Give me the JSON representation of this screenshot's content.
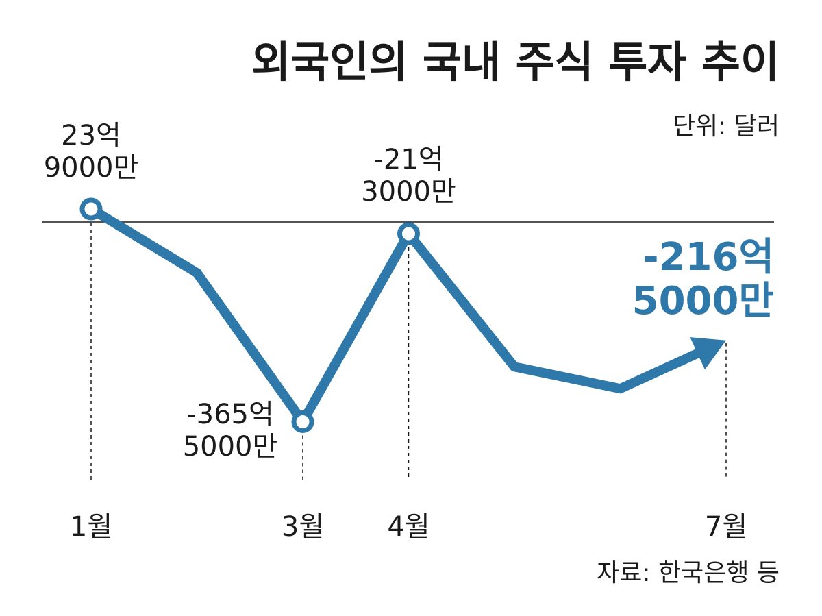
{
  "title": "외국인의 국내 주식 투자 추이",
  "unit": "단위: 달러",
  "source": "자료: 한국은행 등",
  "colors": {
    "line": "#2f78aa",
    "accent": "#2f78aa",
    "text": "#1a1a1a",
    "baseline": "#1a1a1a"
  },
  "chart_data": {
    "type": "line",
    "title": "외국인의 국내 주식 투자 추이",
    "unit": "단위: 달러",
    "x": [
      1,
      2,
      3,
      4,
      5,
      6,
      7
    ],
    "xlabel": "",
    "ylabel": "",
    "x_ticks": [
      {
        "x": 1,
        "label": "1월"
      },
      {
        "x": 3,
        "label": "3월"
      },
      {
        "x": 4,
        "label": "4월"
      },
      {
        "x": 7,
        "label": "7월"
      }
    ],
    "series": [
      {
        "values": [
          23.9,
          -93.0,
          -365.5,
          -21.3,
          -265.0,
          -305.0,
          -216.5
        ]
      }
    ],
    "ylim": [
      -420,
      40
    ],
    "baseline": 0,
    "grid": false,
    "legend": "none",
    "data_labels": [
      {
        "x": 1,
        "lines": [
          "23억",
          "9000만"
        ],
        "highlight": false
      },
      {
        "x": 3,
        "lines": [
          "-365억",
          "5000만"
        ],
        "highlight": false
      },
      {
        "x": 4,
        "lines": [
          "-21억",
          "3000만"
        ],
        "highlight": false
      },
      {
        "x": 7,
        "lines": [
          "-216억",
          "5000만"
        ],
        "highlight": true
      }
    ],
    "markers_at": [
      1,
      3,
      4
    ],
    "arrow_end": true,
    "values_estimated_for_unlabeled_points": true
  }
}
